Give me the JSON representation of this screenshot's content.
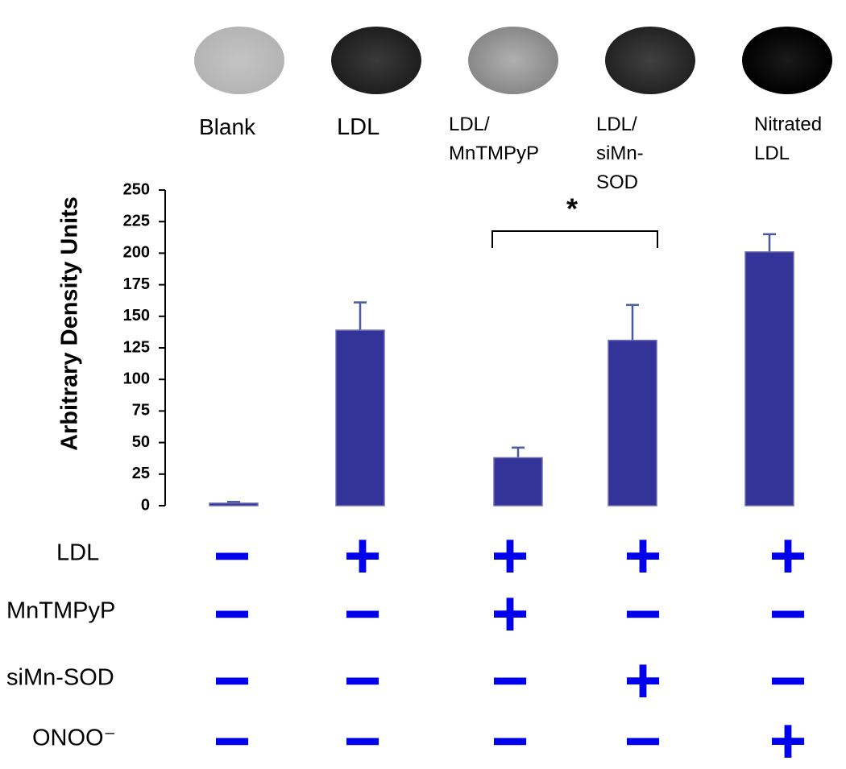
{
  "chart_data": {
    "type": "bar",
    "y_label": "Arbitrary Density Units",
    "categories": [
      "Blank",
      "LDL",
      "LDL/ MnTMPyP",
      "LDL/ siMn-SOD",
      "Nitrated LDL"
    ],
    "values": [
      2,
      139,
      38,
      131,
      201
    ],
    "errors": [
      1,
      22,
      8,
      28,
      14
    ],
    "color": "#333399",
    "ylim": [
      0,
      250
    ],
    "yticks": [
      0,
      25,
      50,
      75,
      100,
      125,
      150,
      175,
      200,
      225,
      250
    ],
    "annotation": "*"
  },
  "treatments": {
    "rows": [
      {
        "label": "LDL",
        "signs": [
          "−",
          "+",
          "+",
          "+",
          "+"
        ]
      },
      {
        "label": "MnTMPyP",
        "signs": [
          "−",
          "−",
          "+",
          "−",
          "−"
        ]
      },
      {
        "label": "siMn-SOD",
        "signs": [
          "−",
          "−",
          "−",
          "+",
          "−"
        ]
      },
      {
        "label": "ONOO⁻",
        "signs": [
          "−",
          "−",
          "−",
          "−",
          "+"
        ]
      }
    ]
  }
}
